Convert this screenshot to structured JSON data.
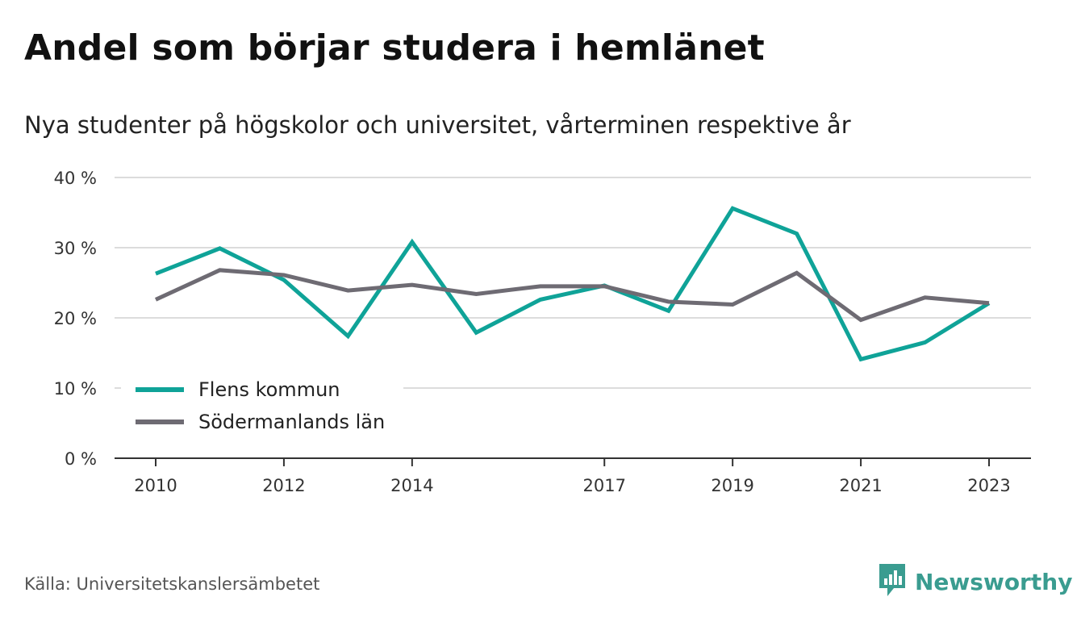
{
  "title": "Andel som börjar studera i hemlänet",
  "subtitle": "Nya studenter på högskolor och universitet, vårterminen respektive år",
  "source": "Källa: Universitetskanslersämbetet",
  "brand": {
    "name": "Newsworthy",
    "icon": "newsworthy-logo-icon",
    "color": "#3a9c90"
  },
  "chart_data": {
    "type": "line",
    "x": [
      2010,
      2011,
      2012,
      2013,
      2014,
      2015,
      2016,
      2017,
      2018,
      2019,
      2020,
      2021,
      2022,
      2023
    ],
    "x_ticks": [
      "2010",
      "2012",
      "2014",
      "2017",
      "2019",
      "2021",
      "2023"
    ],
    "y_ticks": [
      "0 %",
      "10 %",
      "20 %",
      "30 %",
      "40 %"
    ],
    "ylim": [
      0,
      40
    ],
    "xlim": [
      2010,
      2023
    ],
    "grid": true,
    "legend": "bottom-left",
    "series": [
      {
        "name": "Flens kommun",
        "color": "#0fa398",
        "values": [
          26.3,
          29.9,
          25.4,
          17.4,
          30.8,
          17.9,
          22.6,
          24.6,
          21.0,
          35.6,
          32.0,
          14.1,
          16.5,
          22.1
        ]
      },
      {
        "name": "Södermanlands län",
        "color": "#6e6b73",
        "values": [
          22.6,
          26.8,
          26.1,
          23.9,
          24.7,
          23.4,
          24.5,
          24.5,
          22.3,
          21.9,
          26.4,
          19.7,
          22.9,
          22.1
        ]
      }
    ]
  }
}
